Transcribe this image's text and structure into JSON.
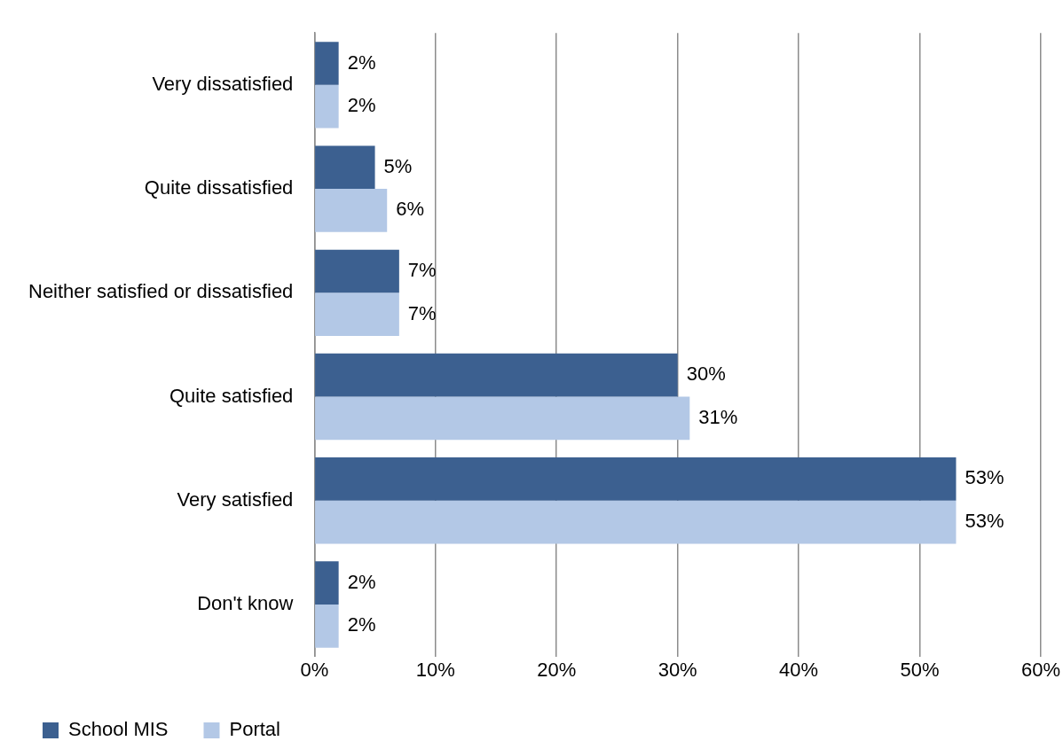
{
  "chart_data": {
    "type": "bar",
    "orientation": "horizontal",
    "categories": [
      "Very dissatisfied",
      "Quite dissatisfied",
      "Neither satisfied or dissatisfied",
      "Quite satisfied",
      "Very satisfied",
      "Don't know"
    ],
    "series": [
      {
        "name": "School MIS",
        "color": "#3c6090",
        "values": [
          2,
          5,
          7,
          30,
          53,
          2
        ],
        "value_labels": [
          "2%",
          "5%",
          "7%",
          "30%",
          "53%",
          "2%"
        ]
      },
      {
        "name": "Portal",
        "color": "#b3c8e6",
        "values": [
          2,
          6,
          7,
          31,
          53,
          2
        ],
        "value_labels": [
          "2%",
          "6%",
          "7%",
          "31%",
          "53%",
          "2%"
        ]
      }
    ],
    "xlim": [
      0,
      60
    ],
    "xticks": [
      {
        "value": 0,
        "label": "0%"
      },
      {
        "value": 10,
        "label": "10%"
      },
      {
        "value": 20,
        "label": "20%"
      },
      {
        "value": 30,
        "label": "30%"
      },
      {
        "value": 40,
        "label": "40%"
      },
      {
        "value": 50,
        "label": "50%"
      },
      {
        "value": 60,
        "label": "60%"
      }
    ],
    "grid": "x",
    "legend": "bottom left"
  }
}
